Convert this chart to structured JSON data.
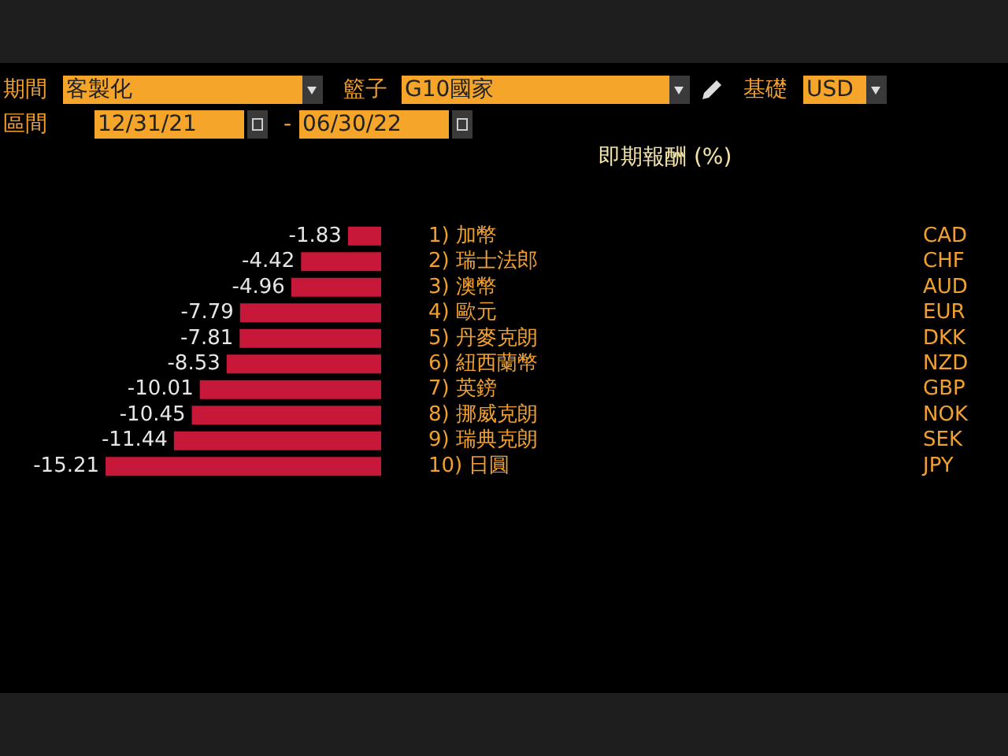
{
  "chart_data": {
    "type": "bar",
    "orientation": "horizontal",
    "title": "即期報酬 (%)",
    "categories": [
      "1) 加幣",
      "2) 瑞士法郎",
      "3) 澳幣",
      "4) 歐元",
      "5) 丹麥克朗",
      "6) 紐西蘭幣",
      "7) 英鎊",
      "8) 挪威克朗",
      "9) 瑞典克朗",
      "10) 日圓"
    ],
    "y2_categories": [
      "CAD",
      "CHF",
      "AUD",
      "EUR",
      "DKK",
      "NZD",
      "GBP",
      "NOK",
      "SEK",
      "JPY"
    ],
    "values": [
      -1.83,
      -4.42,
      -4.96,
      -7.79,
      -7.81,
      -8.53,
      -10.01,
      -10.45,
      -11.44,
      -15.21
    ],
    "color": "#c8183a",
    "xlim": [
      -15.3,
      0
    ],
    "data_labels": true,
    "tick_labels": "y",
    "annotations": [
      "期間",
      "客製化",
      "籃子",
      "G10國家",
      "基礎",
      "USD",
      "區間",
      "12/31/21",
      "-",
      "06/30/22"
    ]
  }
}
